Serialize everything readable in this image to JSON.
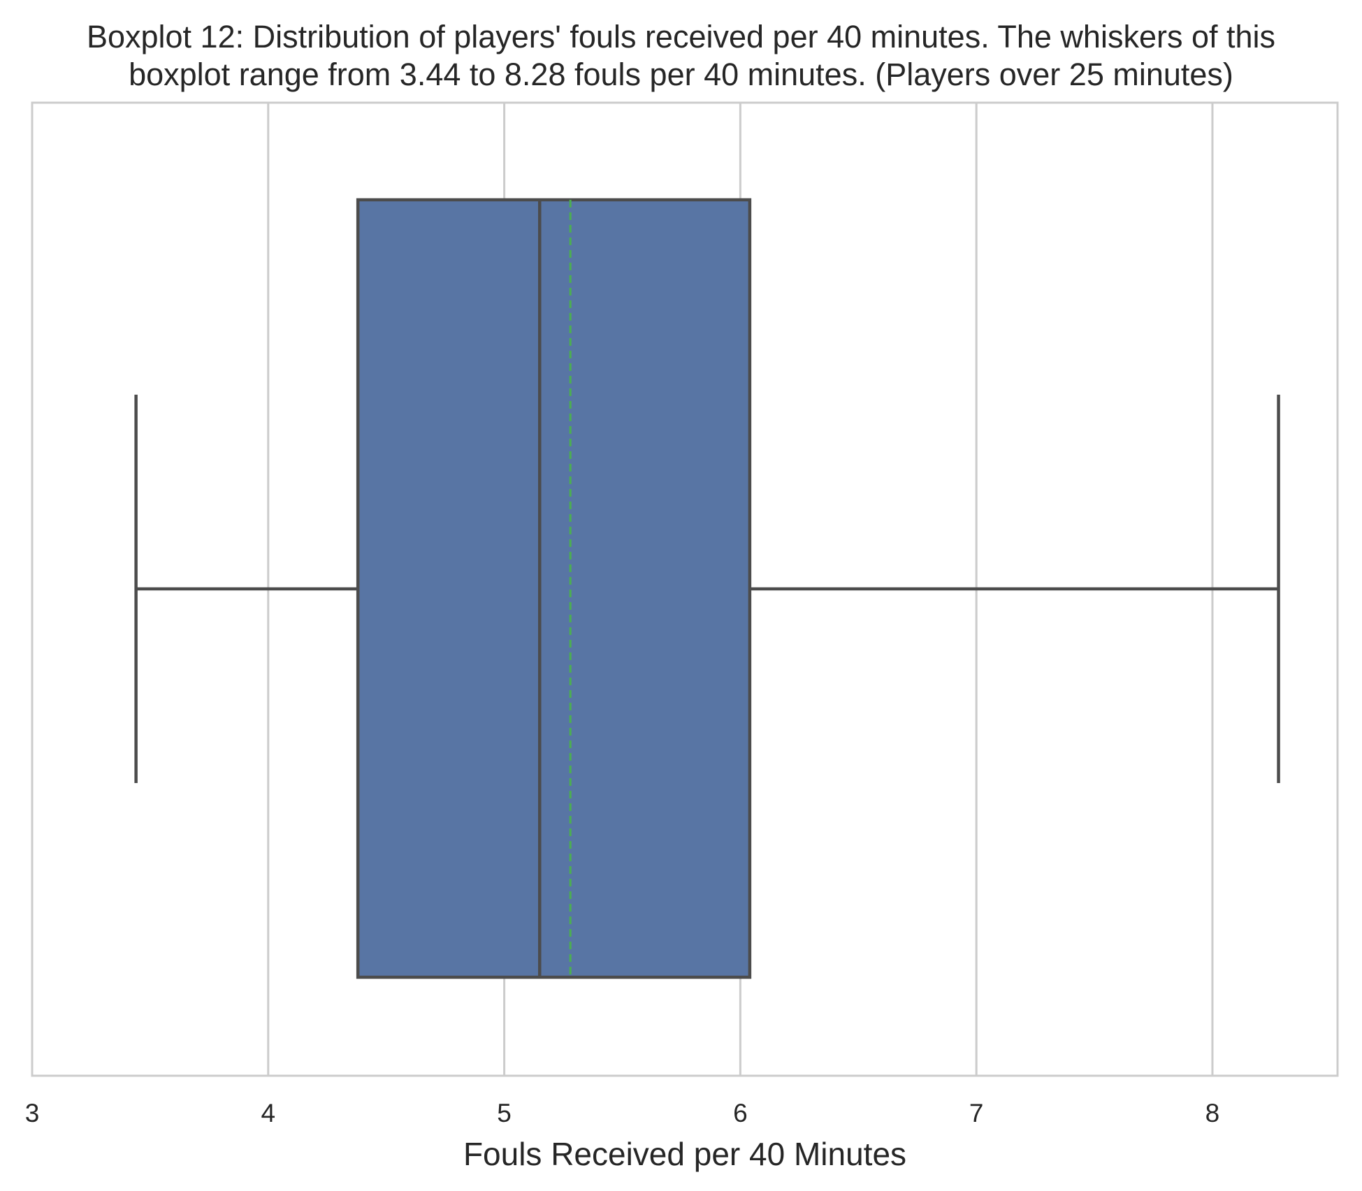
{
  "chart_data": {
    "type": "box",
    "title_lines": [
      "Boxplot 12: Distribution of players' fouls received per 40 minutes. The whiskers of this",
      "boxplot range from 3.44 to 8.28 fouls per 40 minutes. (Players over 25 minutes)"
    ],
    "xlabel": "Fouls Received per 40 Minutes",
    "xlim": [
      3,
      8.53
    ],
    "xticks": [
      3,
      4,
      5,
      6,
      7,
      8
    ],
    "xtick_labels": [
      "3",
      "4",
      "5",
      "6",
      "7",
      "8"
    ],
    "grid": true,
    "orientation": "horizontal",
    "stats": {
      "whisker_low": 3.44,
      "q1": 4.38,
      "median": 5.15,
      "mean": 5.28,
      "q3": 6.04,
      "whisker_high": 8.28
    }
  },
  "colors": {
    "box_fill": "#5875a4",
    "box_edge": "#4c4c4c",
    "mean_line": "#4caf50",
    "grid": "#cccccc",
    "frame": "#cccccc"
  }
}
